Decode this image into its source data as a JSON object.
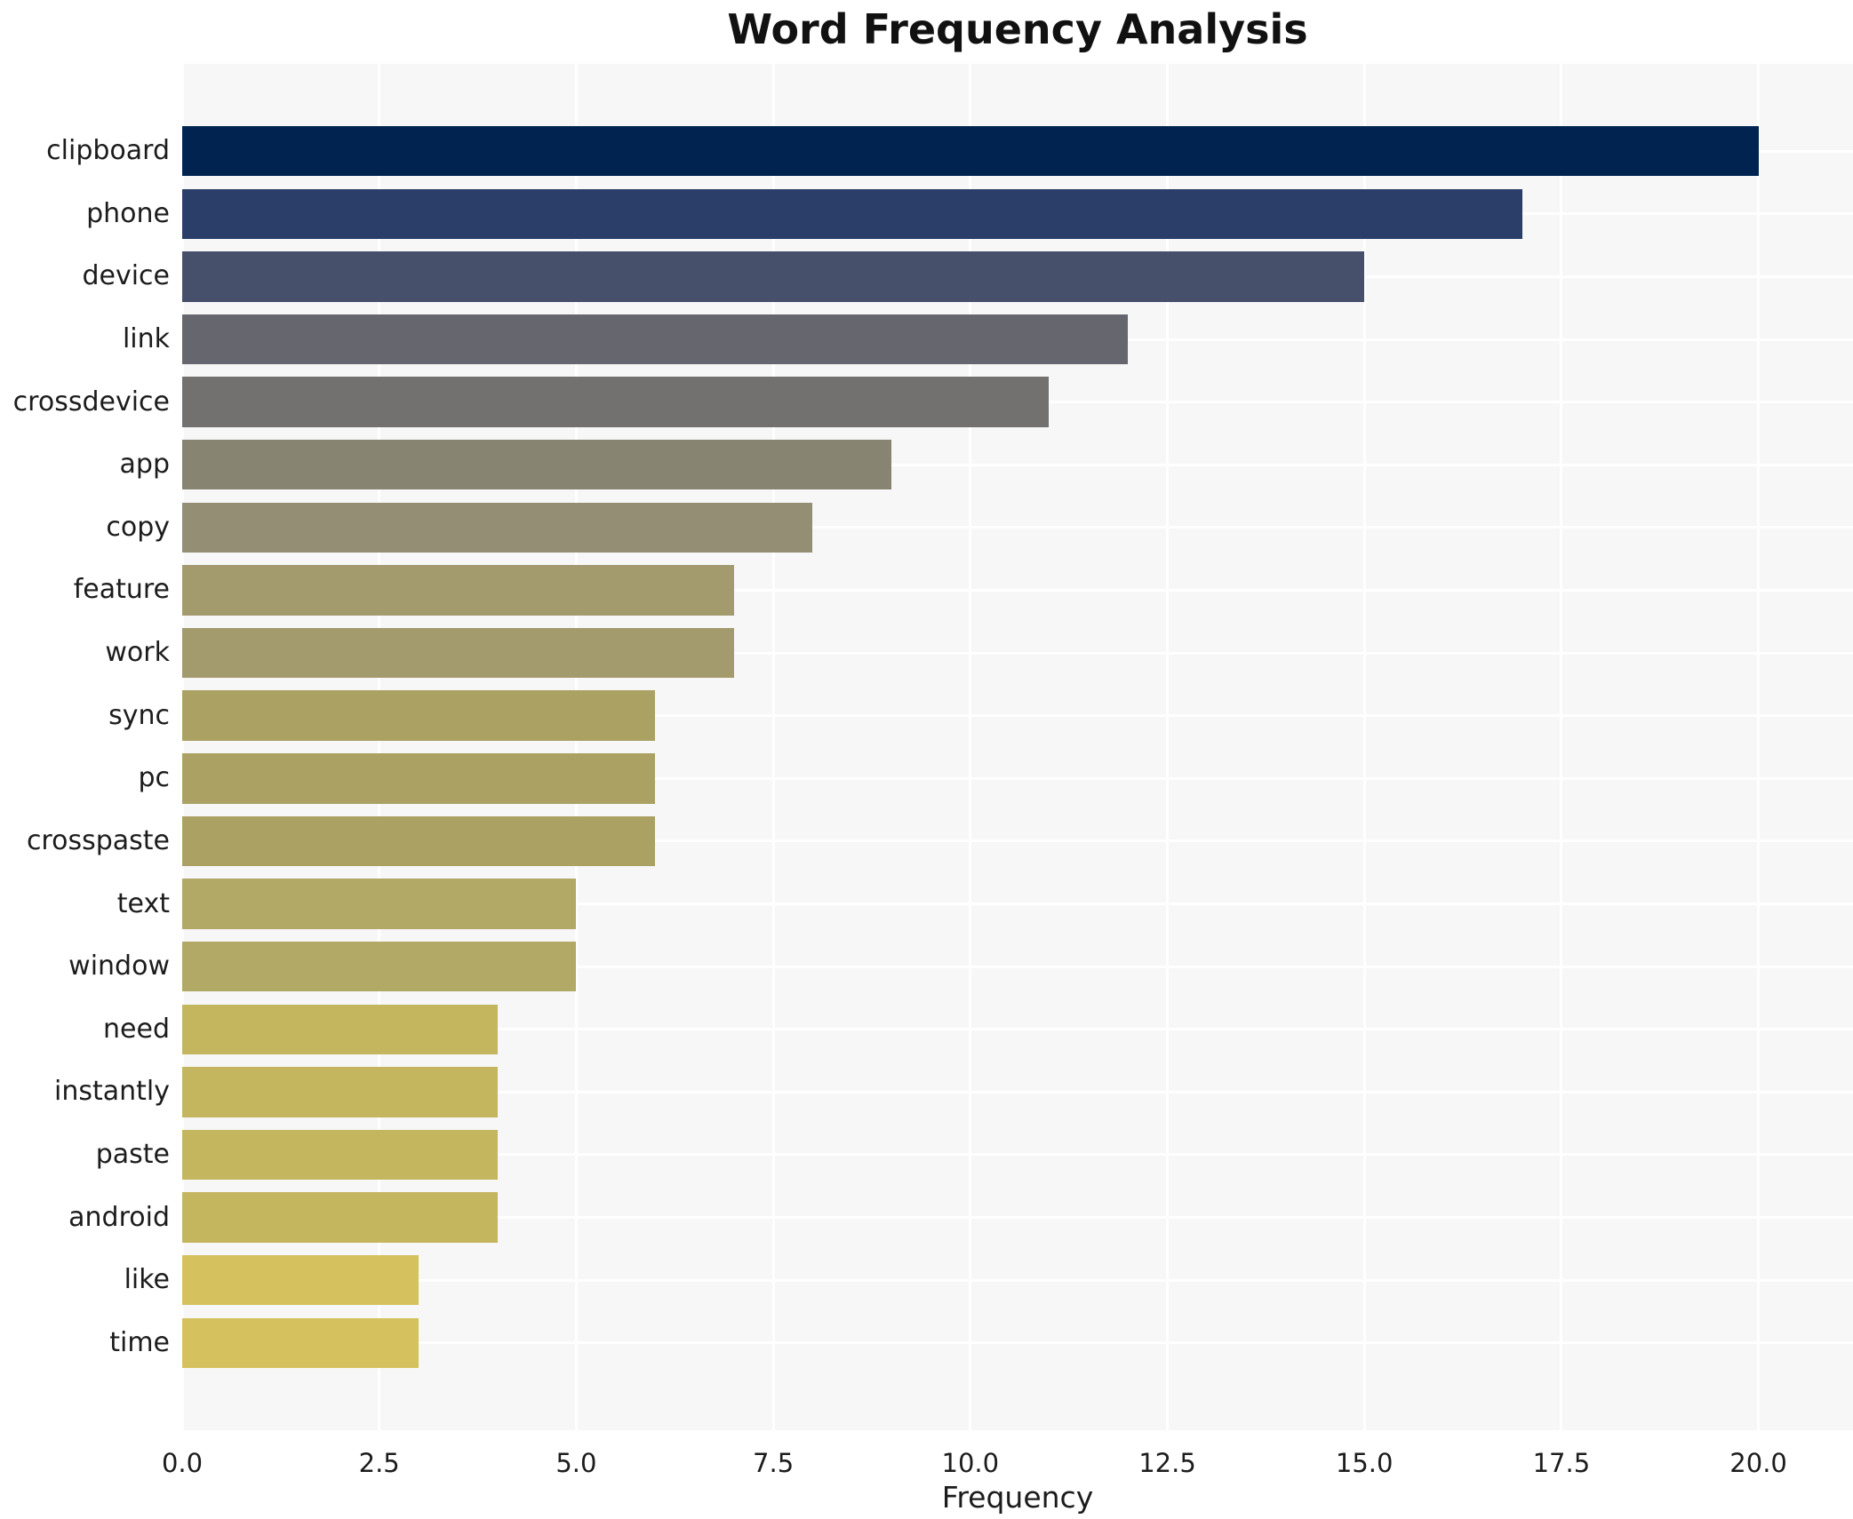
{
  "chart_data": {
    "type": "bar",
    "orientation": "horizontal",
    "title": "Word Frequency Analysis",
    "xlabel": "Frequency",
    "ylabel": "",
    "categories": [
      "clipboard",
      "phone",
      "device",
      "link",
      "crossdevice",
      "app",
      "copy",
      "feature",
      "work",
      "sync",
      "pc",
      "crosspaste",
      "text",
      "window",
      "need",
      "instantly",
      "paste",
      "android",
      "like",
      "time"
    ],
    "values": [
      20,
      17,
      15,
      12,
      11,
      9,
      8,
      7,
      7,
      6,
      6,
      6,
      5,
      5,
      4,
      4,
      4,
      4,
      3,
      3
    ],
    "bar_colors": [
      "#00234f",
      "#2a3e69",
      "#46506b",
      "#65666e",
      "#727170",
      "#878471",
      "#948e74",
      "#a39a6e",
      "#a39a6e",
      "#aaa163",
      "#aaa163",
      "#aaa163",
      "#b3a966",
      "#b3a966",
      "#c4b65e",
      "#c4b65e",
      "#c4b65e",
      "#c4b65e",
      "#d5c25e",
      "#d5c25e"
    ],
    "xticks": [
      0,
      2.5,
      5,
      7.5,
      10,
      12.5,
      15,
      17.5,
      20
    ],
    "xtick_labels": [
      "0.0",
      "2.5",
      "5.0",
      "7.5",
      "10.0",
      "12.5",
      "15.0",
      "17.5",
      "20.0"
    ],
    "xlim": [
      0,
      21.2
    ],
    "grid": true,
    "legend": false,
    "plot_background": "#f7f7f8",
    "grid_color": "#ffffff",
    "text_color": "#1c1c1c"
  }
}
